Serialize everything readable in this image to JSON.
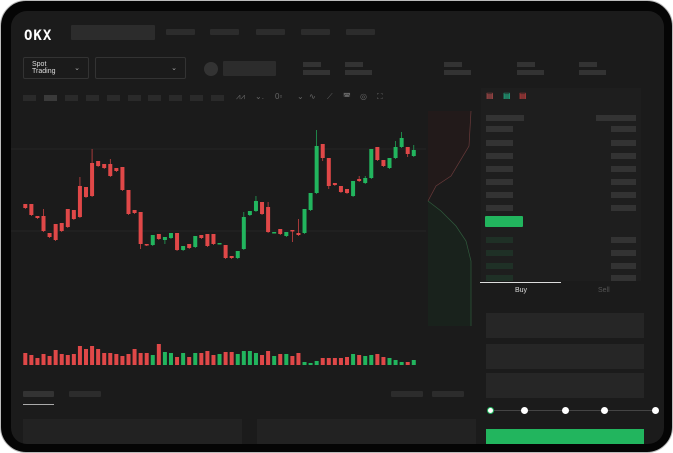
{
  "header": {
    "logo": "OKX"
  },
  "toolbar": {
    "market_select": "Spot Trading",
    "market_chevron": "⌄",
    "pair_chevron": "⌄"
  },
  "chart_icons": [
    "indicator-icon",
    "indicator-icon",
    "indicator-icon",
    "line-icon",
    "ruler-icon",
    "camera-icon",
    "settings-icon",
    "fullscreen-icon"
  ],
  "colors": {
    "up": "#22b55e",
    "down": "#e04848",
    "background": "#1b1b1b",
    "buy": "#22b55e"
  },
  "order_form": {
    "buy_tab": "Buy",
    "sell_tab": "Sell",
    "active_tab": "Buy",
    "slider_level": 0
  },
  "chart_data": {
    "type": "candlestick",
    "candles": [
      [
        97,
        93,
        97,
        93
      ],
      [
        97,
        86,
        97,
        86
      ],
      [
        85,
        83,
        85,
        83
      ],
      [
        85,
        70,
        92,
        70
      ],
      [
        68,
        64,
        68,
        64
      ],
      [
        77,
        61,
        77,
        61
      ],
      [
        78,
        70,
        78,
        70
      ],
      [
        92,
        74,
        92,
        74
      ],
      [
        91,
        82,
        91,
        82
      ],
      [
        115,
        84,
        124,
        84
      ],
      [
        114,
        104,
        114,
        104
      ],
      [
        138,
        105,
        152,
        105
      ],
      [
        140,
        135,
        140,
        135
      ],
      [
        137,
        133,
        137,
        133
      ],
      [
        137,
        125,
        142,
        125
      ],
      [
        133,
        130,
        133,
        130
      ],
      [
        134,
        111,
        134,
        111
      ],
      [
        111,
        87,
        111,
        87
      ],
      [
        91,
        88,
        91,
        88
      ],
      [
        89,
        57,
        89,
        53
      ],
      [
        57,
        56,
        57,
        56
      ],
      [
        56,
        66,
        66,
        56
      ],
      [
        67,
        62,
        67,
        62
      ],
      [
        61,
        64,
        64,
        58
      ],
      [
        63,
        68,
        68,
        63
      ],
      [
        68,
        51,
        68,
        51
      ],
      [
        51,
        55,
        55,
        51
      ],
      [
        57,
        53,
        57,
        53
      ],
      [
        54,
        65,
        65,
        54
      ],
      [
        66,
        63,
        66,
        63
      ],
      [
        67,
        55,
        67,
        55
      ],
      [
        67,
        57,
        67,
        57
      ],
      [
        58,
        58,
        58,
        58
      ],
      [
        56,
        43,
        56,
        43
      ],
      [
        45,
        43,
        45,
        43
      ],
      [
        43,
        50,
        50,
        43
      ],
      [
        52,
        84,
        89,
        52
      ],
      [
        86,
        90,
        90,
        86
      ],
      [
        90,
        100,
        105,
        90
      ],
      [
        99,
        87,
        99,
        87
      ],
      [
        94,
        69,
        99,
        69
      ],
      [
        69,
        69,
        69,
        69
      ],
      [
        72,
        67,
        72,
        67
      ],
      [
        65,
        69,
        69,
        65
      ],
      [
        71,
        70,
        71,
        60
      ],
      [
        68,
        66,
        82,
        66
      ],
      [
        68,
        92,
        92,
        68
      ],
      [
        91,
        108,
        108,
        91
      ],
      [
        108,
        155,
        171,
        108
      ],
      [
        157,
        143,
        157,
        141
      ],
      [
        143,
        115,
        143,
        113
      ],
      [
        118,
        116,
        118,
        116
      ],
      [
        115,
        109,
        115,
        109
      ],
      [
        112,
        108,
        112,
        108
      ],
      [
        105,
        120,
        120,
        105
      ],
      [
        122,
        120,
        125,
        120
      ],
      [
        118,
        123,
        125,
        118
      ],
      [
        123,
        152,
        152,
        123
      ],
      [
        154,
        141,
        154,
        141
      ],
      [
        141,
        135,
        141,
        135
      ],
      [
        133,
        143,
        143,
        133
      ],
      [
        143,
        154,
        160,
        143
      ],
      [
        154,
        163,
        169,
        154
      ],
      [
        154,
        147,
        154,
        145
      ],
      [
        145,
        151,
        156,
        145
      ]
    ],
    "candle_order": "open,close,high,low",
    "volume": [
      12,
      10,
      7,
      11,
      9,
      15,
      11,
      10,
      11,
      19,
      16,
      19,
      16,
      12,
      12,
      11,
      9,
      11,
      16,
      12,
      12,
      10,
      21,
      13,
      12,
      8,
      12,
      8,
      12,
      12,
      14,
      10,
      11,
      13,
      13,
      11,
      14,
      14,
      12,
      10,
      14,
      9,
      11,
      11,
      9,
      12,
      3,
      2,
      4,
      7,
      7,
      7,
      7,
      8,
      11,
      10,
      9,
      10,
      11,
      8,
      7,
      5,
      3,
      3,
      5
    ]
  }
}
